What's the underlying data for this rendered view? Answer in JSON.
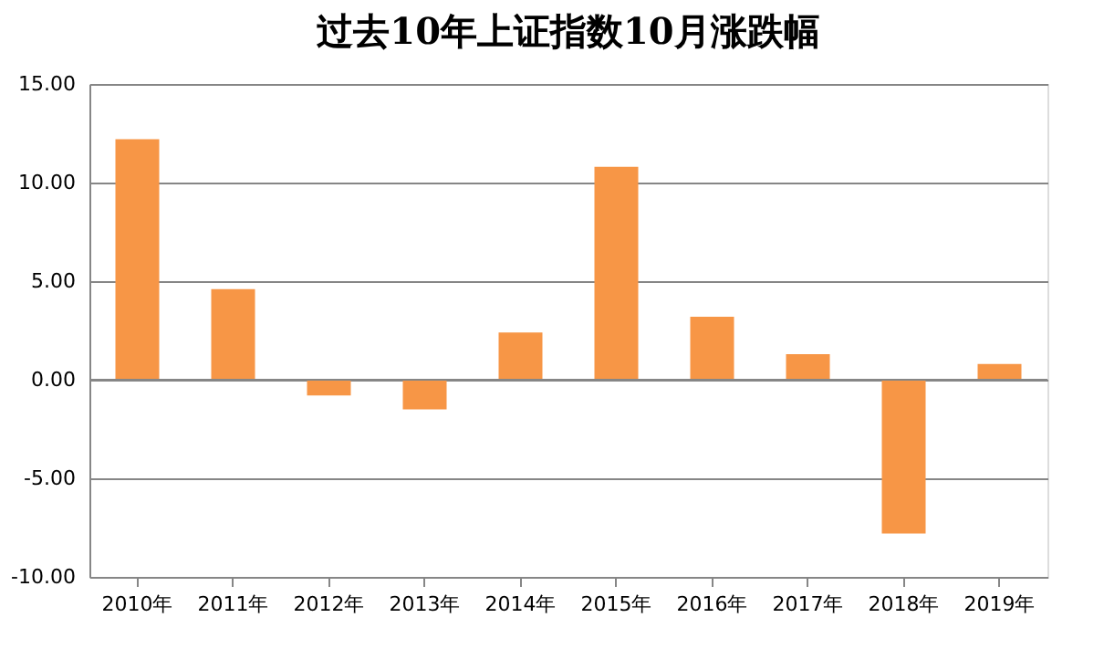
{
  "chart_data": {
    "type": "bar",
    "title": "过去10年上证指数10月涨跌幅",
    "categories": [
      "2010年",
      "2011年",
      "2012年",
      "2013年",
      "2014年",
      "2015年",
      "2016年",
      "2017年",
      "2018年",
      "2019年"
    ],
    "series": [
      {
        "color": "#f79646",
        "values": [
          12.2,
          4.6,
          -0.8,
          -1.5,
          2.4,
          10.8,
          3.2,
          1.3,
          -7.8,
          0.8
        ]
      }
    ],
    "ylim": [
      -10,
      15
    ],
    "yticks": [
      {
        "value": -10,
        "label": "-10.00"
      },
      {
        "value": -5,
        "label": "-5.00"
      },
      {
        "value": 0,
        "label": "0.00"
      },
      {
        "value": 5,
        "label": "5.00"
      },
      {
        "value": 10,
        "label": "10.00"
      },
      {
        "value": 15,
        "label": "15.00"
      }
    ],
    "grid": "y"
  }
}
